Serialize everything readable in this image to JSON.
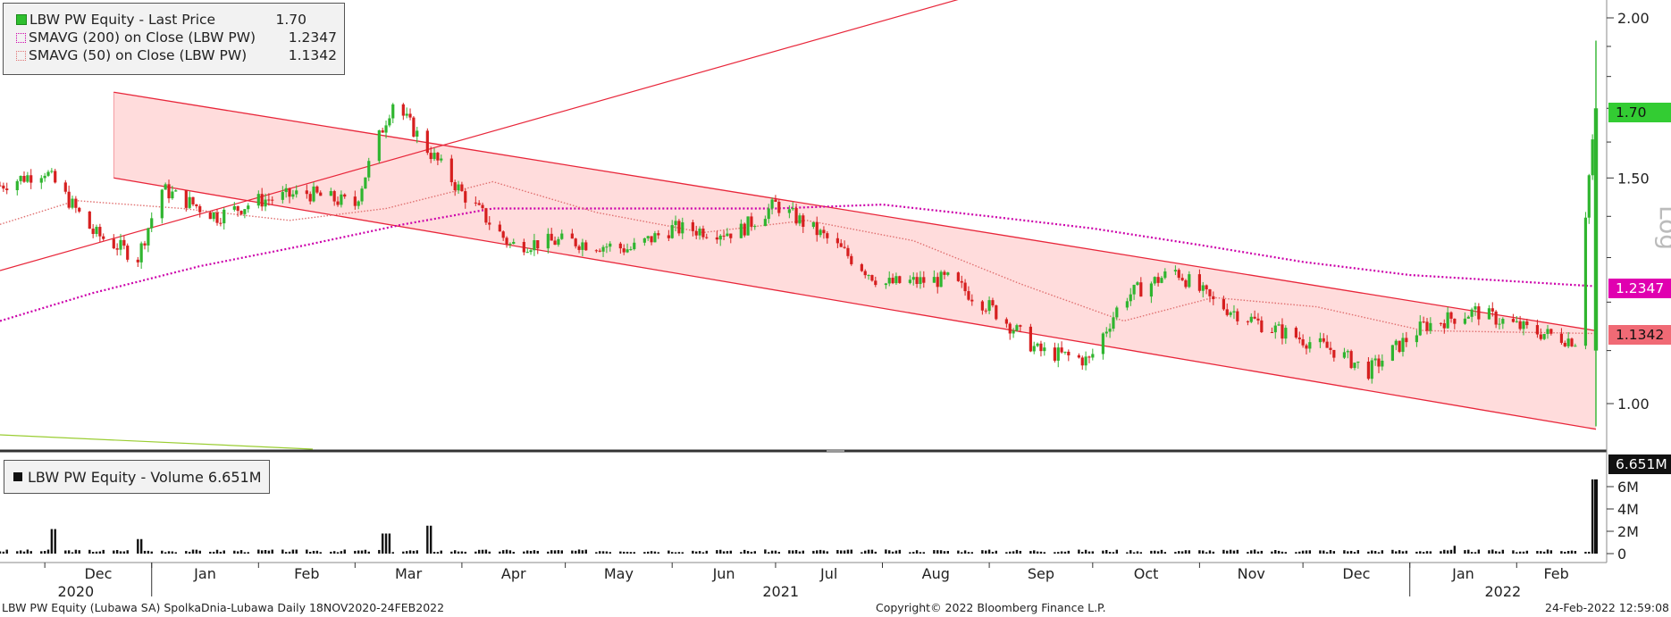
{
  "legend": {
    "items": [
      {
        "name": "LBW PW Equity - Last Price",
        "value": "1.70"
      },
      {
        "name": "SMAVG (200)  on Close (LBW PW)",
        "value": "1.2347"
      },
      {
        "name": "SMAVG (50)  on Close (LBW PW)",
        "value": "1.1342"
      }
    ]
  },
  "volume_legend": {
    "name": "LBW PW Equity - Volume 6.651M"
  },
  "tags": {
    "last": "1.70",
    "sma200": "1.2347",
    "sma50": "1.1342",
    "volume": "6.651M"
  },
  "axis": {
    "scale_label": "Log"
  },
  "footer": {
    "left": "LBW PW Equity (Lubawa SA) SpolkaDnia-Lubawa  Daily 18NOV2020-24FEB2022",
    "center": "Copyright© 2022 Bloomberg Finance L.P.",
    "right": "24-Feb-2022 12:59:08"
  },
  "colors": {
    "up": "#2fb52f",
    "down": "#d61f1f",
    "sma200": "#cc00aa",
    "sma50": "#e07070",
    "channel_fill": "#ffd6d6",
    "channel_line": "#e8263a"
  },
  "chart_data": {
    "type": "line",
    "title": "LBW PW Equity - Last Price",
    "y_scale": "log",
    "price_ticks": [
      "1.00",
      "1.50",
      "2.00"
    ],
    "volume_ticks": [
      "0",
      "2M",
      "4M",
      "6M"
    ],
    "x_ticks": [
      "Dec",
      "Jan",
      "Feb",
      "Mar",
      "Apr",
      "May",
      "Jun",
      "Jul",
      "Aug",
      "Sep",
      "Oct",
      "Nov",
      "Dec",
      "Jan",
      "Feb"
    ],
    "x_years": [
      "2020",
      "2021",
      "2022"
    ],
    "series": [
      {
        "name": "LBW PW Equity - Last Price",
        "points": [
          [
            "2020-11-18",
            1.48
          ],
          [
            "2020-12-01",
            1.52
          ],
          [
            "2020-12-15",
            1.36
          ],
          [
            "2020-12-28",
            1.3
          ],
          [
            "2021-01-04",
            1.47
          ],
          [
            "2021-01-20",
            1.4
          ],
          [
            "2021-02-01",
            1.44
          ],
          [
            "2021-02-15",
            1.46
          ],
          [
            "2021-03-01",
            1.43
          ],
          [
            "2021-03-12",
            1.72
          ],
          [
            "2021-03-22",
            1.58
          ],
          [
            "2021-04-01",
            1.46
          ],
          [
            "2021-04-15",
            1.33
          ],
          [
            "2021-05-01",
            1.34
          ],
          [
            "2021-05-20",
            1.32
          ],
          [
            "2021-06-01",
            1.37
          ],
          [
            "2021-06-20",
            1.36
          ],
          [
            "2021-07-01",
            1.43
          ],
          [
            "2021-07-15",
            1.35
          ],
          [
            "2021-08-01",
            1.24
          ],
          [
            "2021-08-20",
            1.25
          ],
          [
            "2021-09-01",
            1.19
          ],
          [
            "2021-09-15",
            1.1
          ],
          [
            "2021-09-30",
            1.08
          ],
          [
            "2021-10-10",
            1.21
          ],
          [
            "2021-10-25",
            1.27
          ],
          [
            "2021-11-05",
            1.2
          ],
          [
            "2021-11-20",
            1.15
          ],
          [
            "2021-12-10",
            1.1
          ],
          [
            "2021-12-20",
            1.06
          ],
          [
            "2022-01-05",
            1.15
          ],
          [
            "2022-01-20",
            1.18
          ],
          [
            "2022-02-05",
            1.14
          ],
          [
            "2022-02-18",
            1.12
          ],
          [
            "2022-02-24",
            1.7
          ]
        ]
      },
      {
        "name": "SMAVG (200)  on Close (LBW PW)",
        "points": [
          [
            "2020-11-18",
            1.16
          ],
          [
            "2020-12-15",
            1.22
          ],
          [
            "2021-01-15",
            1.28
          ],
          [
            "2021-02-15",
            1.33
          ],
          [
            "2021-03-15",
            1.38
          ],
          [
            "2021-04-10",
            1.42
          ],
          [
            "2021-06-01",
            1.42
          ],
          [
            "2021-07-01",
            1.42
          ],
          [
            "2021-08-01",
            1.43
          ],
          [
            "2021-09-01",
            1.4
          ],
          [
            "2021-10-01",
            1.37
          ],
          [
            "2021-11-01",
            1.33
          ],
          [
            "2021-12-01",
            1.29
          ],
          [
            "2022-01-01",
            1.26
          ],
          [
            "2022-02-24",
            1.2347
          ]
        ]
      },
      {
        "name": "SMAVG (50)  on Close (LBW PW)",
        "points": [
          [
            "2020-11-18",
            1.38
          ],
          [
            "2020-12-10",
            1.44
          ],
          [
            "2021-01-10",
            1.42
          ],
          [
            "2021-02-10",
            1.39
          ],
          [
            "2021-03-10",
            1.42
          ],
          [
            "2021-04-10",
            1.49
          ],
          [
            "2021-05-10",
            1.41
          ],
          [
            "2021-06-10",
            1.36
          ],
          [
            "2021-07-10",
            1.39
          ],
          [
            "2021-08-10",
            1.34
          ],
          [
            "2021-09-10",
            1.24
          ],
          [
            "2021-10-10",
            1.16
          ],
          [
            "2021-11-05",
            1.21
          ],
          [
            "2021-12-05",
            1.19
          ],
          [
            "2022-01-05",
            1.14
          ],
          [
            "2022-02-24",
            1.1342
          ]
        ]
      }
    ],
    "last_bar": {
      "date": "2022-02-24",
      "open": 1.1,
      "high": 1.92,
      "low": 0.96,
      "close": 1.7
    },
    "channel": {
      "upper": [
        [
          "2020-12-21",
          1.75
        ],
        [
          "2022-02-24",
          1.14
        ]
      ],
      "lower": [
        [
          "2020-12-21",
          1.5
        ],
        [
          "2022-02-24",
          0.955
        ]
      ]
    },
    "trendline": [
      [
        "2020-11-18",
        1.27
      ],
      [
        "2021-09-01",
        2.1
      ]
    ],
    "volume": {
      "last": 6.651,
      "unit": "M",
      "peaks": [
        [
          "2020-12-04",
          2.2
        ],
        [
          "2020-12-28",
          1.3
        ],
        [
          "2021-03-10",
          1.8
        ],
        [
          "2021-03-22",
          2.5
        ],
        [
          "2022-01-15",
          0.7
        ],
        [
          "2022-02-24",
          6.651
        ]
      ]
    }
  }
}
